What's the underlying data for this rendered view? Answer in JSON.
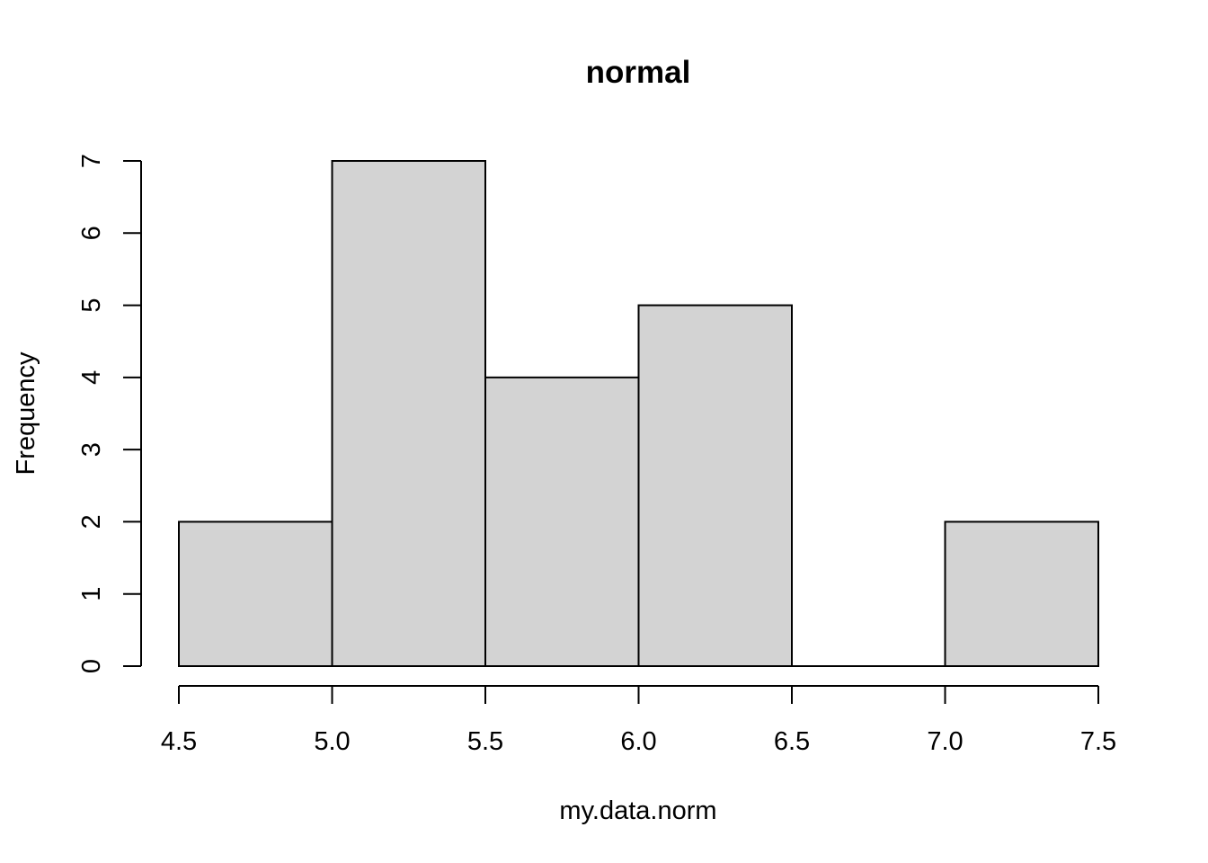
{
  "chart_data": {
    "type": "bar",
    "title": "normal",
    "xlabel": "my.data.norm",
    "ylabel": "Frequency",
    "bins": [
      {
        "start": 4.5,
        "end": 5.0,
        "count": 2
      },
      {
        "start": 5.0,
        "end": 5.5,
        "count": 7
      },
      {
        "start": 5.5,
        "end": 6.0,
        "count": 4
      },
      {
        "start": 6.0,
        "end": 6.5,
        "count": 5
      },
      {
        "start": 6.5,
        "end": 7.0,
        "count": 0
      },
      {
        "start": 7.0,
        "end": 7.5,
        "count": 2
      }
    ],
    "xlim": [
      4.5,
      7.5
    ],
    "ylim": [
      0,
      7
    ],
    "x_ticks": [
      "4.5",
      "5.0",
      "5.5",
      "6.0",
      "6.5",
      "7.0",
      "7.5"
    ],
    "y_ticks": [
      "0",
      "1",
      "2",
      "3",
      "4",
      "5",
      "6",
      "7"
    ],
    "grid": false,
    "legend": "none",
    "bar_color": "#d3d3d3",
    "edge_color": "#000000"
  }
}
